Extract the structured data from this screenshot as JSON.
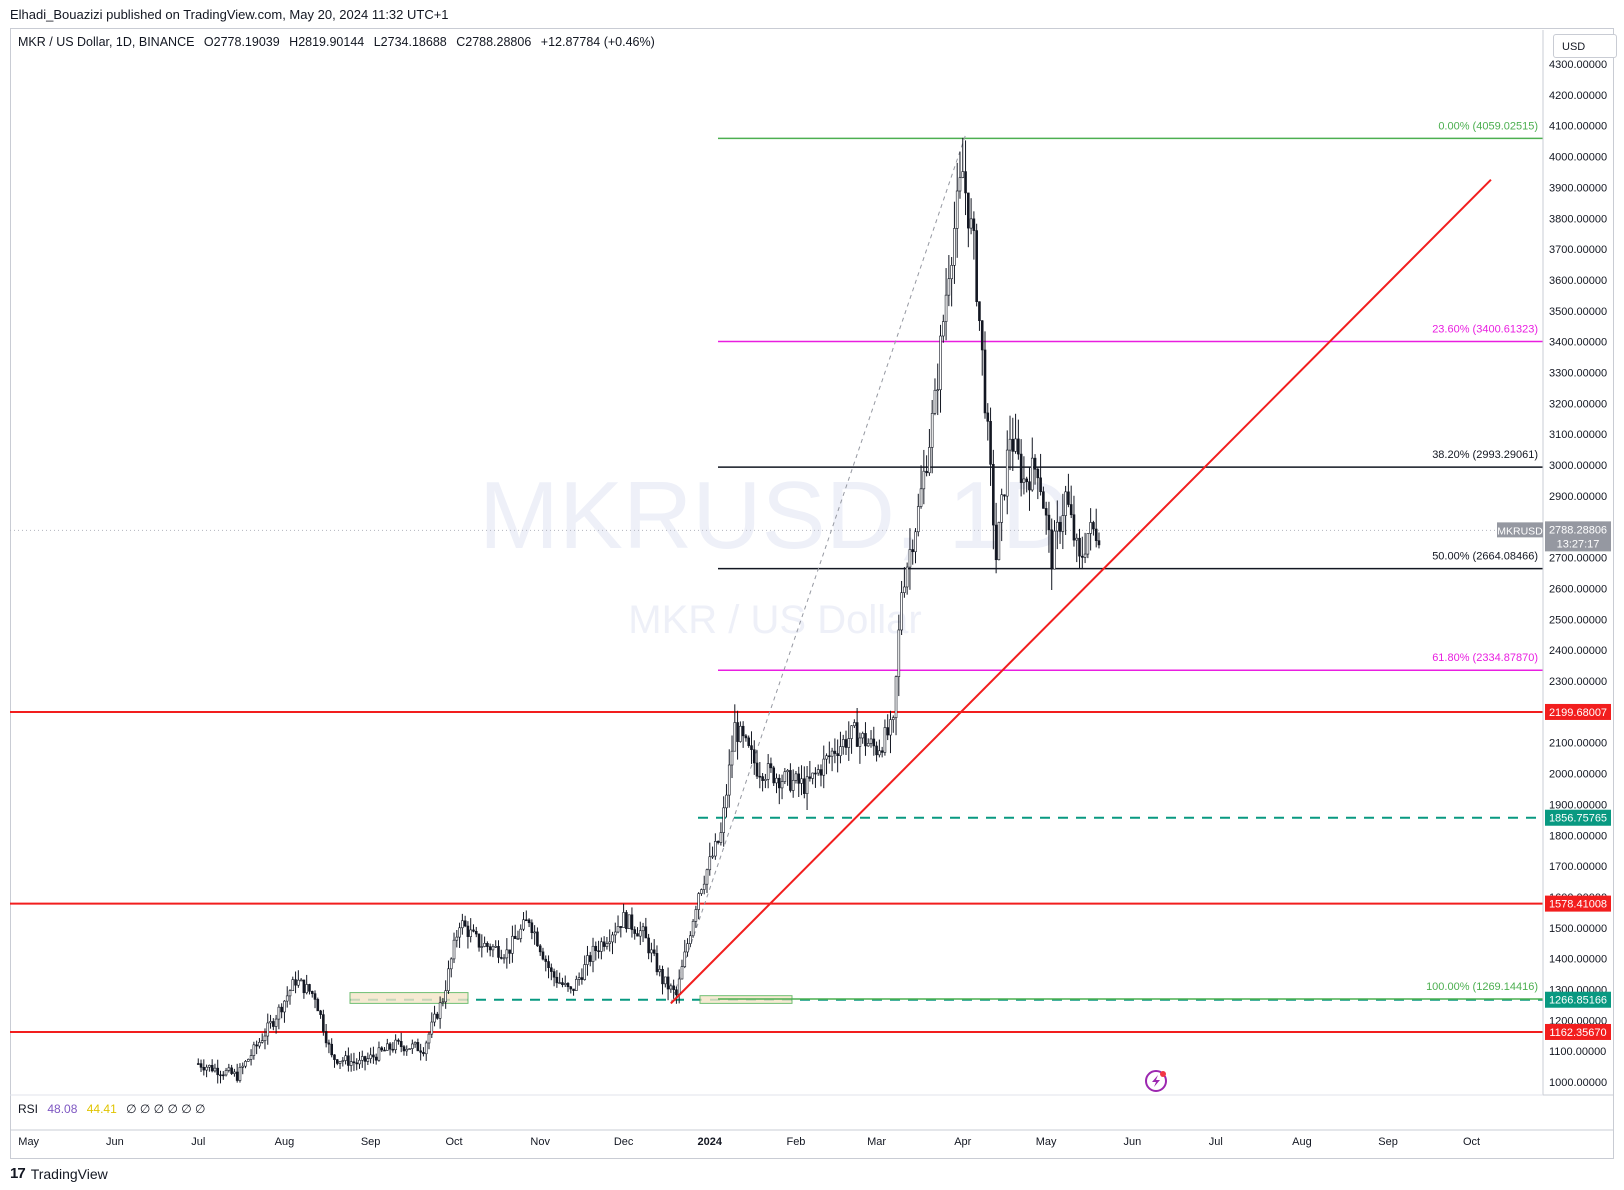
{
  "header": {
    "published_line": "Elhadi_Bouazizi published on TradingView.com, May 20, 2024 11:32 UTC+1"
  },
  "legend": {
    "symbol": "MKR / US Dollar, 1D, BINANCE",
    "open": "O2778.19039",
    "high": "H2819.90144",
    "low": "L2734.18688",
    "close": "C2788.28806",
    "change": "+12.87784 (+0.46%)"
  },
  "currency_button": "USD",
  "watermark": {
    "symbol": "MKRUSD, 1D",
    "name": "MKR / US Dollar"
  },
  "rsi": {
    "label": "RSI",
    "value1": "48.08",
    "value2": "44.41",
    "na": "∅ ∅ ∅ ∅ ∅ ∅"
  },
  "footer": {
    "brand": "TradingView",
    "logo": "17"
  },
  "colors": {
    "red_line": "#f21e1e",
    "green_fib": "#4caf50",
    "magenta_fib": "#e91ee0",
    "black_fib": "#131722",
    "teal_dash": "#089981",
    "candle": "#131722"
  },
  "chart_data": {
    "type": "candlestick",
    "symbol": "MKRUSD",
    "timeframe": "1D",
    "ylim": [
      950,
      4380
    ],
    "price_ticks": [
      "4300.00000",
      "4200.00000",
      "4100.00000",
      "4000.00000",
      "3900.00000",
      "3800.00000",
      "3700.00000",
      "3600.00000",
      "3500.00000",
      "3400.00000",
      "3300.00000",
      "3200.00000",
      "3100.00000",
      "3000.00000",
      "2900.00000",
      "2800.00000",
      "2700.00000",
      "2600.00000",
      "2500.00000",
      "2400.00000",
      "2300.00000",
      "2200.00000",
      "2100.00000",
      "2000.00000",
      "1900.00000",
      "1800.00000",
      "1700.00000",
      "1600.00000",
      "1500.00000",
      "1400.00000",
      "1300.00000",
      "1200.00000",
      "1100.00000",
      "1000.00000"
    ],
    "month_ticks": [
      "May",
      "Jun",
      "Jul",
      "Aug",
      "Sep",
      "Oct",
      "Nov",
      "Dec",
      "2024",
      "Feb",
      "Mar",
      "Apr",
      "May",
      "Jun",
      "Jul",
      "Aug",
      "Sep",
      "Oct"
    ],
    "current_price": {
      "symbol": "MKRUSD",
      "value": "2788.28806",
      "countdown": "13:27:17"
    },
    "fib_levels": [
      {
        "label": "0.00% (4059.02515)",
        "price": 4059.02515,
        "color": "#4caf50"
      },
      {
        "label": "23.60% (3400.61323)",
        "price": 3400.61323,
        "color": "#e91ee0"
      },
      {
        "label": "38.20% (2993.29061)",
        "price": 2993.29061,
        "color": "#131722"
      },
      {
        "label": "50.00% (2664.08466)",
        "price": 2664.08466,
        "color": "#131722"
      },
      {
        "label": "61.80% (2334.87870)",
        "price": 2334.8787,
        "color": "#e91ee0"
      },
      {
        "label": "100.00% (1269.14416)",
        "price": 1269.14416,
        "color": "#4caf50"
      }
    ],
    "horizontal_levels": [
      {
        "label": "2199.68007",
        "price": 2199.68007,
        "color": "#f21e1e",
        "style": "solid"
      },
      {
        "label": "1856.75765",
        "price": 1856.75765,
        "color": "#089981",
        "style": "dashed"
      },
      {
        "label": "1578.41008",
        "price": 1578.41008,
        "color": "#f21e1e",
        "style": "solid"
      },
      {
        "label": "1266.85166",
        "price": 1266.85166,
        "color": "#089981",
        "style": "dashed"
      },
      {
        "label": "1162.35670",
        "price": 1162.3567,
        "color": "#f21e1e",
        "style": "solid"
      }
    ],
    "trendline": {
      "from": [
        "2023-12-18",
        1255
      ],
      "to": [
        "2024-10-08",
        3925
      ],
      "color": "#f21e1e"
    },
    "price_path": [
      [
        "2023-07-01",
        1060
      ],
      [
        "2023-07-15",
        1020
      ],
      [
        "2023-07-28",
        1200
      ],
      [
        "2023-08-05",
        1330
      ],
      [
        "2023-08-12",
        1280
      ],
      [
        "2023-08-18",
        1080
      ],
      [
        "2023-08-28",
        1060
      ],
      [
        "2023-09-10",
        1120
      ],
      [
        "2023-09-20",
        1110
      ],
      [
        "2023-09-27",
        1270
      ],
      [
        "2023-10-03",
        1520
      ],
      [
        "2023-10-10",
        1450
      ],
      [
        "2023-10-20",
        1420
      ],
      [
        "2023-10-28",
        1530
      ],
      [
        "2023-11-05",
        1350
      ],
      [
        "2023-11-12",
        1290
      ],
      [
        "2023-11-20",
        1420
      ],
      [
        "2023-12-01",
        1530
      ],
      [
        "2023-12-08",
        1480
      ],
      [
        "2023-12-15",
        1330
      ],
      [
        "2023-12-20",
        1280
      ],
      [
        "2023-12-28",
        1620
      ],
      [
        "2024-01-05",
        1800
      ],
      [
        "2024-01-10",
        2150
      ],
      [
        "2024-01-18",
        2020
      ],
      [
        "2024-01-28",
        1980
      ],
      [
        "2024-02-05",
        1960
      ],
      [
        "2024-02-15",
        2080
      ],
      [
        "2024-02-22",
        2130
      ],
      [
        "2024-03-01",
        2080
      ],
      [
        "2024-03-07",
        2150
      ],
      [
        "2024-03-10",
        2600
      ],
      [
        "2024-03-16",
        2850
      ],
      [
        "2024-03-22",
        3200
      ],
      [
        "2024-03-27",
        3650
      ],
      [
        "2024-04-01",
        3950
      ],
      [
        "2024-04-05",
        3700
      ],
      [
        "2024-04-08",
        3350
      ],
      [
        "2024-04-13",
        2700
      ],
      [
        "2024-04-18",
        3100
      ],
      [
        "2024-04-23",
        2950
      ],
      [
        "2024-04-28",
        3000
      ],
      [
        "2024-05-03",
        2700
      ],
      [
        "2024-05-08",
        2900
      ],
      [
        "2024-05-13",
        2680
      ],
      [
        "2024-05-16",
        2780
      ],
      [
        "2024-05-20",
        2788
      ]
    ]
  }
}
